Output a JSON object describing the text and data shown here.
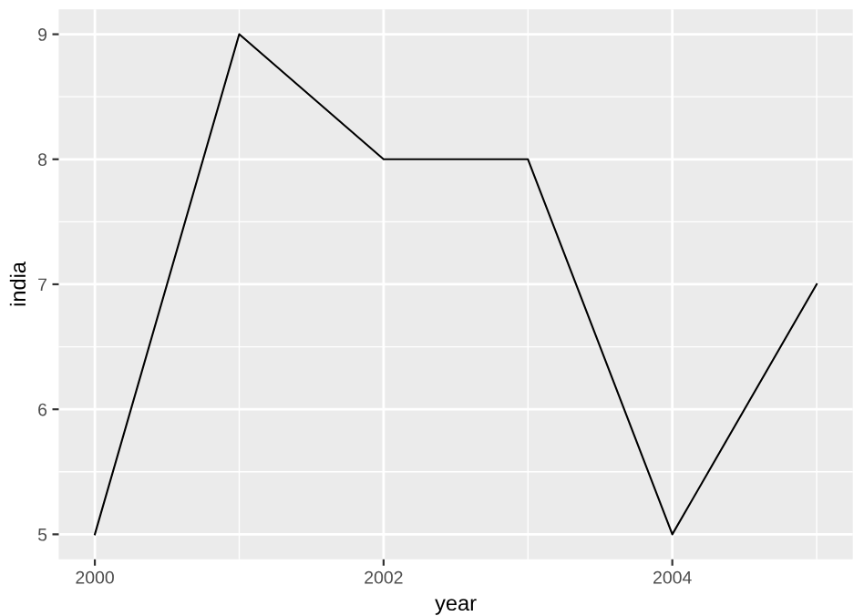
{
  "chart_data": {
    "type": "line",
    "xlabel": "year",
    "ylabel": "india",
    "x": [
      2000,
      2001,
      2002,
      2003,
      2004,
      2005
    ],
    "series": [
      {
        "color": "#000000",
        "values": [
          5,
          9,
          8,
          8,
          5,
          7
        ]
      }
    ],
    "xlim": [
      1999.75,
      2005.25
    ],
    "xticks": [
      2000,
      2002,
      2004
    ],
    "ylim": [
      4.8,
      9.2
    ],
    "yticks": [
      5,
      6,
      7,
      8,
      9
    ],
    "grid": true,
    "marker": "none",
    "line_style": "solid"
  }
}
